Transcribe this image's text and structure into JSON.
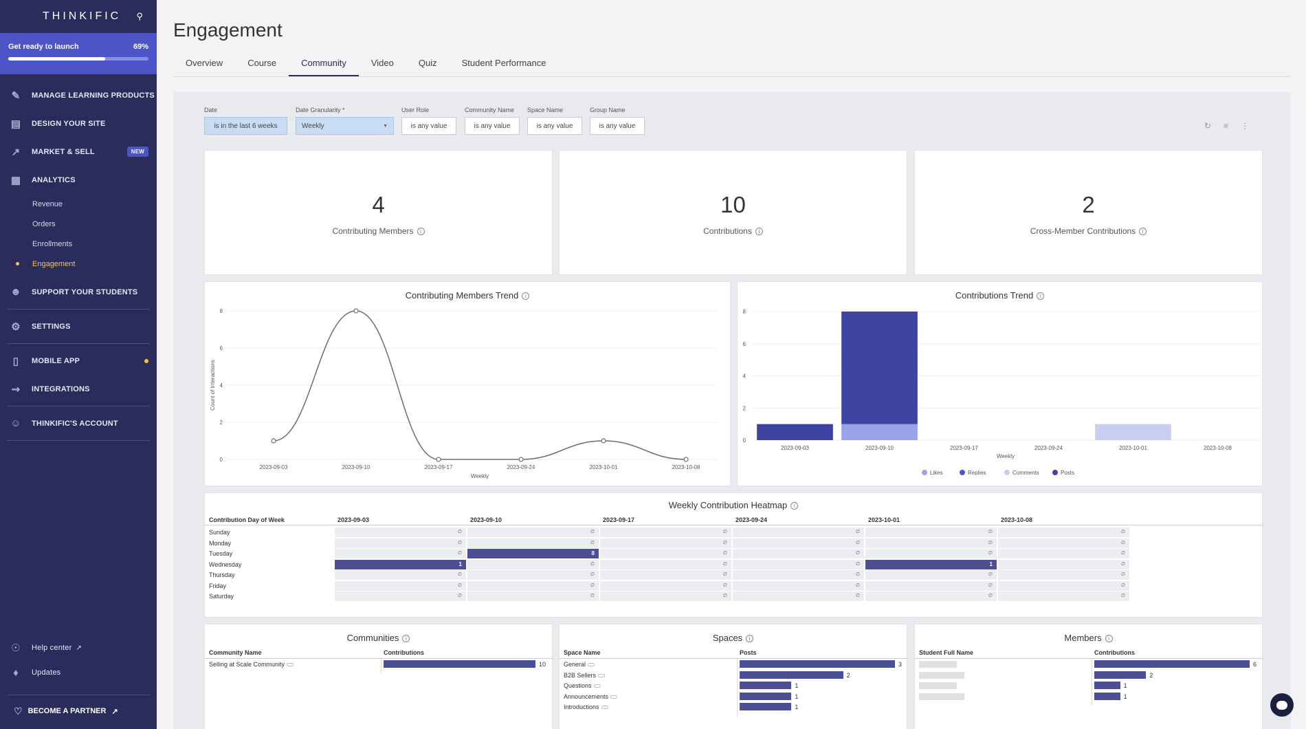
{
  "brand": "THINKIFIC",
  "launch": {
    "label": "Get ready to launch",
    "percent_label": "69%",
    "progress": 0.69
  },
  "nav": {
    "manage": "MANAGE LEARNING PRODUCTS",
    "design": "DESIGN YOUR SITE",
    "market": "MARKET & SELL",
    "new_badge": "NEW",
    "analytics": "ANALYTICS",
    "sub": [
      "Revenue",
      "Orders",
      "Enrollments",
      "Engagement"
    ],
    "support": "SUPPORT YOUR STUDENTS",
    "settings": "SETTINGS",
    "mobile": "MOBILE APP",
    "integrations": "INTEGRATIONS",
    "account": "THINKIFIC'S ACCOUNT",
    "help": "Help center",
    "updates": "Updates",
    "partner": "BECOME A PARTNER"
  },
  "page": {
    "title": "Engagement"
  },
  "tabs": [
    "Overview",
    "Course",
    "Community",
    "Video",
    "Quiz",
    "Student Performance"
  ],
  "filters": {
    "date_label": "Date",
    "date_value": "is in the last 6 weeks",
    "gran_label": "Date Granularity *",
    "gran_value": "Weekly",
    "role_label": "User Role",
    "role_value": "is any value",
    "community_label": "Community Name",
    "community_value": "is any value",
    "space_label": "Space Name",
    "space_value": "is any value",
    "group_label": "Group Name",
    "group_value": "is any value"
  },
  "kpis": [
    {
      "value": "4",
      "label": "Contributing Members"
    },
    {
      "value": "10",
      "label": "Contributions"
    },
    {
      "value": "2",
      "label": "Cross-Member Contributions"
    }
  ],
  "chart_data": [
    {
      "type": "line",
      "title": "Contributing Members Trend",
      "xlabel": "Weekly",
      "ylabel": "Count of Interactions",
      "categories": [
        "2023-09-03",
        "2023-09-10",
        "2023-09-17",
        "2023-09-24",
        "2023-10-01",
        "2023-10-08"
      ],
      "values": [
        1,
        8,
        0,
        0,
        1,
        0
      ],
      "ylim": [
        0,
        8
      ],
      "yticks": [
        "0",
        "2",
        "4",
        "6",
        "8"
      ]
    },
    {
      "type": "bar",
      "title": "Contributions Trend",
      "xlabel": "Weekly",
      "categories": [
        "2023-09-03",
        "2023-09-10",
        "2023-09-17",
        "2023-09-24",
        "2023-10-01",
        "2023-10-08"
      ],
      "series": [
        {
          "name": "Likes",
          "values": [
            0,
            1,
            0,
            0,
            0,
            0
          ],
          "color": "#9aa3e8"
        },
        {
          "name": "Replies",
          "values": [
            0,
            0,
            0,
            0,
            0,
            0
          ],
          "color": "#4b55c8"
        },
        {
          "name": "Comments",
          "values": [
            0,
            0,
            0,
            0,
            1,
            0
          ],
          "color": "#c9cdf2"
        },
        {
          "name": "Posts",
          "values": [
            1,
            7,
            0,
            0,
            0,
            0
          ],
          "color": "#3f44a3"
        }
      ],
      "ylim": [
        0,
        8
      ],
      "yticks": [
        "0",
        "2",
        "4",
        "6",
        "8"
      ],
      "legend": "bottom"
    },
    {
      "type": "heatmap",
      "title": "Weekly Contribution Heatmap",
      "row_header": "Contribution Day of Week",
      "columns": [
        "2023-09-03",
        "2023-09-10",
        "2023-09-17",
        "2023-09-24",
        "2023-10-01",
        "2023-10-08"
      ],
      "rows": [
        "Sunday",
        "Monday",
        "Tuesday",
        "Wednesday",
        "Thursday",
        "Friday",
        "Saturday"
      ],
      "values": [
        [
          0,
          0,
          0,
          0,
          0,
          0
        ],
        [
          0,
          0,
          0,
          0,
          0,
          0
        ],
        [
          0,
          8,
          0,
          0,
          0,
          0
        ],
        [
          1,
          0,
          0,
          0,
          1,
          0
        ],
        [
          0,
          0,
          0,
          0,
          0,
          0
        ],
        [
          0,
          0,
          0,
          0,
          0,
          0
        ],
        [
          0,
          0,
          0,
          0,
          0,
          0
        ]
      ],
      "empty_symbol": "∅"
    },
    {
      "type": "bar",
      "title": "Communities",
      "headers": [
        "Community Name",
        "Contributions"
      ],
      "categories": [
        "Selling at Scale Community"
      ],
      "values": [
        10
      ]
    },
    {
      "type": "bar",
      "title": "Spaces",
      "headers": [
        "Space Name",
        "Posts"
      ],
      "categories": [
        "General",
        "B2B Sellers",
        "Questions",
        "Announcements",
        "Introductions"
      ],
      "values": [
        3,
        2,
        1,
        1,
        1
      ]
    },
    {
      "type": "bar",
      "title": "Members",
      "headers": [
        "Student Full Name",
        "Contributions"
      ],
      "values": [
        6,
        2,
        1,
        1
      ]
    }
  ],
  "colors": {
    "sidebar": "#2a2d5c",
    "accent": "#4b55c8",
    "bar": "#4a4f96",
    "highlight": "#f5c542"
  }
}
